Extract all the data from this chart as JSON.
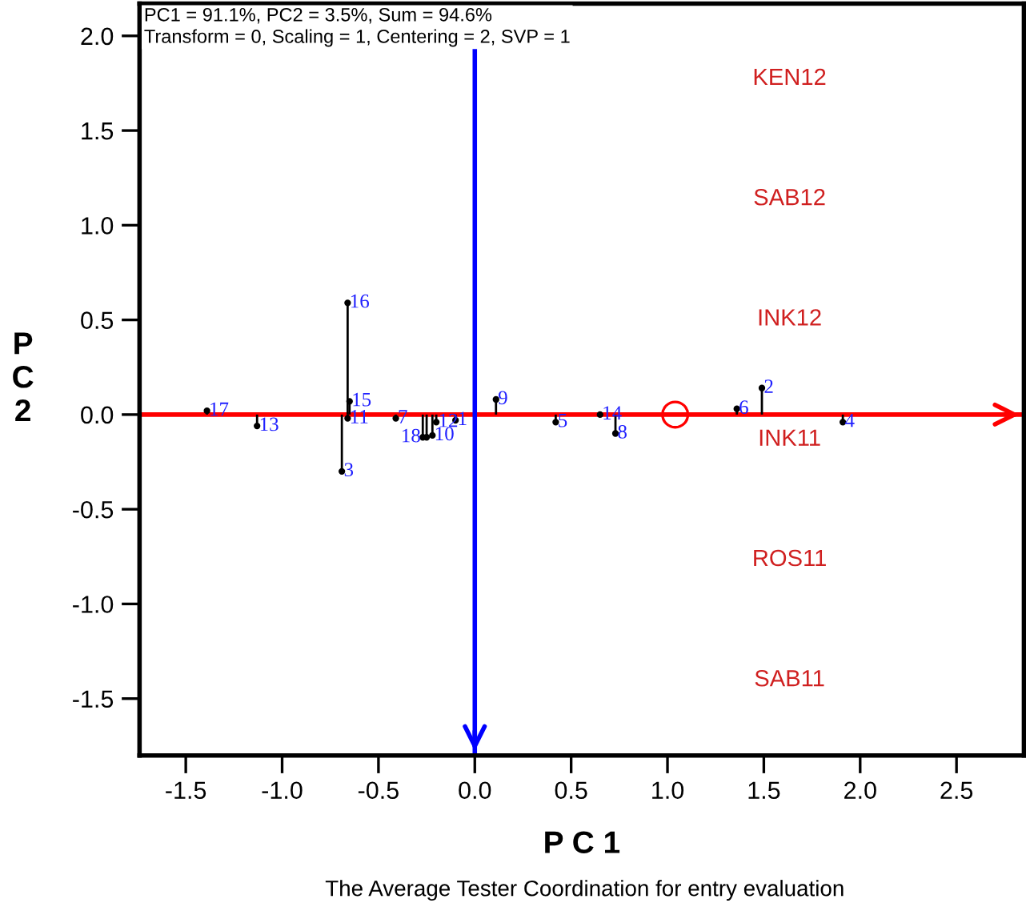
{
  "chart_data": {
    "type": "lollipop",
    "title": "The Average Tester Coordination for entry evaluation",
    "subtitle": "PC1 = 91.1%, PC2 = 3.5%, Sum = 94.6%\nTransform = 0, Scaling = 1, Centering = 2, SVP = 1",
    "xlabel": "P C 1",
    "ylabel": "PC2",
    "series": [
      {
        "color": "#000000",
        "marker": "circle",
        "x": [
          -1.39,
          -1.13,
          -0.66,
          -0.65,
          -0.66,
          -0.69,
          -0.41,
          -0.27,
          -0.25,
          -0.22,
          -0.2,
          -0.1,
          0.11,
          0.42,
          0.65,
          0.73,
          1.36,
          1.49,
          1.91
        ],
        "values": [
          0.02,
          -0.06,
          0.59,
          0.07,
          -0.02,
          -0.3,
          -0.02,
          -0.12,
          -0.12,
          -0.11,
          -0.04,
          -0.03,
          0.08,
          -0.04,
          0.0,
          -0.1,
          0.03,
          0.14,
          -0.04
        ]
      },
      {
        "type": "scatter",
        "color": "#ff0000",
        "marker": "circle",
        "x": [
          1.04
        ],
        "values": [
          0.0
        ]
      }
    ],
    "annotations": [
      {
        "text": "17",
        "x": -1.39,
        "y": 0.02
      },
      {
        "text": "13",
        "x": -1.13,
        "y": -0.06
      },
      {
        "text": "16",
        "x": -0.66,
        "y": 0.59
      },
      {
        "text": "15",
        "x": -0.65,
        "y": 0.07
      },
      {
        "text": "11",
        "x": -0.66,
        "y": -0.02
      },
      {
        "text": "3",
        "x": -0.69,
        "y": -0.3
      },
      {
        "text": "7",
        "x": -0.41,
        "y": -0.02
      },
      {
        "text": "18",
        "x": -0.27,
        "y": -0.12
      },
      {
        "text": "12",
        "x": -0.2,
        "y": -0.04
      },
      {
        "text": "10",
        "x": -0.22,
        "y": -0.11
      },
      {
        "text": "1",
        "x": -0.1,
        "y": -0.03
      },
      {
        "text": "9",
        "x": 0.11,
        "y": 0.08
      },
      {
        "text": "5",
        "x": 0.42,
        "y": -0.04
      },
      {
        "text": "14",
        "x": 0.65,
        "y": 0.0
      },
      {
        "text": "8",
        "x": 0.73,
        "y": -0.1
      },
      {
        "text": "6",
        "x": 1.36,
        "y": 0.03
      },
      {
        "text": "2",
        "x": 1.49,
        "y": 0.14
      },
      {
        "text": "4",
        "x": 1.91,
        "y": -0.04
      },
      "KEN12",
      "SAB12",
      "INK12",
      "INK11",
      "ROS11",
      "SAB11"
    ],
    "ref_lines": [
      {
        "axis": "y",
        "value": 0,
        "color": "#ff0000"
      },
      {
        "axis": "x",
        "value": 0,
        "color": "#0000ff"
      }
    ],
    "xlim": [
      -1.74,
      2.85
    ],
    "ylim": [
      -1.8,
      2.17
    ],
    "xticks": [
      {
        "value": -1.5,
        "label": "-1.5"
      },
      {
        "value": -1.0,
        "label": "-1.0"
      },
      {
        "value": -0.5,
        "label": "-0.5"
      },
      {
        "value": 0,
        "label": "0.0"
      },
      {
        "value": 0.5,
        "label": "0.5"
      },
      {
        "value": 1.0,
        "label": "1.0"
      },
      {
        "value": 1.5,
        "label": "1.5"
      },
      {
        "value": 2.0,
        "label": "2.0"
      },
      {
        "value": 2.5,
        "label": "2.5"
      }
    ],
    "yticks": [
      {
        "value": -1.5,
        "label": "-1.5"
      },
      {
        "value": -1.0,
        "label": "-1.0"
      },
      {
        "value": -0.5,
        "label": "-0.5"
      },
      {
        "value": 0,
        "label": "0.0"
      },
      {
        "value": 0.5,
        "label": "0.5"
      },
      {
        "value": 1.0,
        "label": "1.0"
      },
      {
        "value": 1.5,
        "label": "1.5"
      },
      {
        "value": 2.0,
        "label": "2.0"
      }
    ],
    "grid": false,
    "legend": false
  }
}
